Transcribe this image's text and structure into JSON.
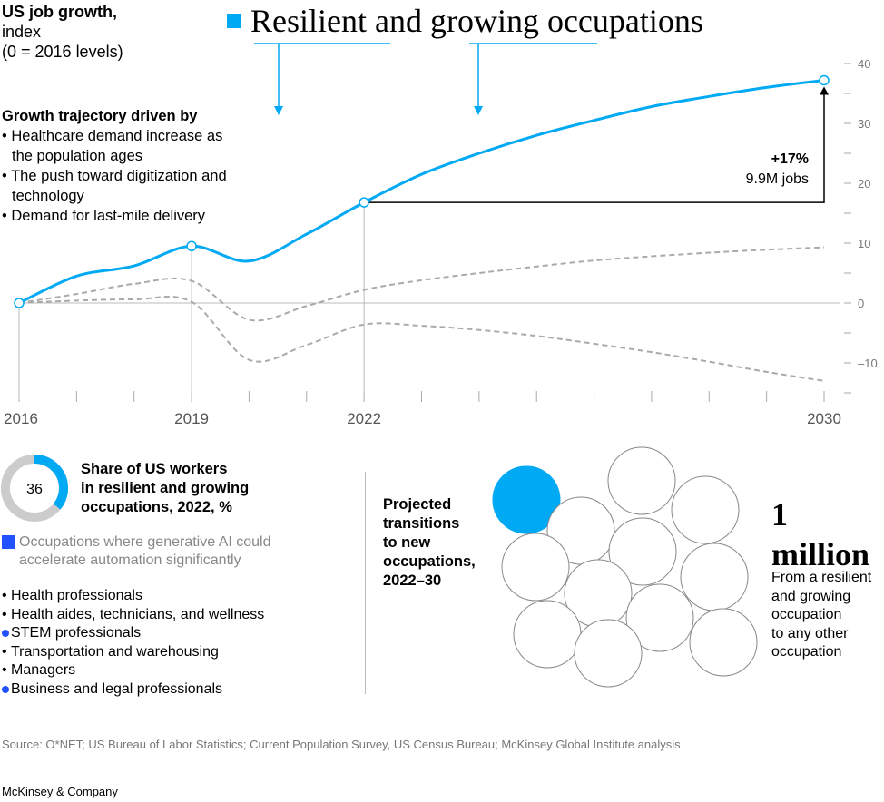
{
  "y_title": {
    "bold": "US job growth,",
    "line2": "index",
    "line3": "(0 = 2016 levels)"
  },
  "headline": "Resilient and growing occupations",
  "drivers": {
    "title": "Growth trajectory driven by",
    "items": [
      "Healthcare demand increase as the population ages",
      "The push toward digitization and technology",
      "Demand for last-mile delivery"
    ]
  },
  "annotation": {
    "pct": "+17%",
    "jobs": "9.9M jobs"
  },
  "colors": {
    "accent": "#00a9f4",
    "ai": "#2251ff",
    "dashed": "#aaaaaa"
  },
  "chart_data": {
    "type": "line",
    "x": [
      2016,
      2017,
      2018,
      2019,
      2020,
      2021,
      2022,
      2023,
      2024,
      2025,
      2026,
      2027,
      2028,
      2029,
      2030
    ],
    "x_tick_labels": [
      "2016",
      "2019",
      "2022",
      "2030"
    ],
    "y_tick_labels": [
      "40",
      "30",
      "20",
      "10",
      "0",
      "–10"
    ],
    "ylim": [
      -15,
      40
    ],
    "series": [
      {
        "name": "Resilient and growing occupations",
        "style": "solid",
        "color": "#00a9f4",
        "values": [
          0,
          4.5,
          6.2,
          9.5,
          7,
          11.5,
          16.8,
          21.5,
          25,
          28,
          30.5,
          32.8,
          34.5,
          36,
          37.2
        ]
      },
      {
        "style": "dashed",
        "color": "#aaaaaa",
        "values": [
          0,
          1.5,
          3.2,
          3.7,
          -2.8,
          -0.5,
          2.2,
          3.8,
          5,
          6.1,
          7.1,
          7.8,
          8.4,
          8.9,
          9.3
        ]
      },
      {
        "style": "dashed",
        "color": "#aaaaaa",
        "values": [
          0,
          0.4,
          0.6,
          0.2,
          -9.5,
          -7,
          -3.6,
          -3.8,
          -4.5,
          -5.5,
          -6.8,
          -8.2,
          -9.8,
          -11.5,
          -13
        ]
      }
    ],
    "markers": [
      2016,
      2019,
      2022,
      2030
    ]
  },
  "share": {
    "value": 36,
    "label": "36",
    "title": [
      "Share of US workers",
      "in resilient and growing",
      "occupations, 2022, %"
    ]
  },
  "legend": "Occupations where generative AI could accelerate automation significantly",
  "occupations": [
    {
      "label": "Health professionals",
      "ai": false
    },
    {
      "label": "Health aides, technicians, and wellness",
      "ai": false
    },
    {
      "label": "STEM professionals",
      "ai": true
    },
    {
      "label": "Transportation and warehousing",
      "ai": false
    },
    {
      "label": "Managers",
      "ai": false
    },
    {
      "label": "Business and legal professionals",
      "ai": true
    }
  ],
  "projected": [
    "Projected",
    "transitions",
    "to new",
    "occupations,",
    "2022–30"
  ],
  "bubbles": {
    "total": 13,
    "highlighted": 1
  },
  "million": {
    "l1": "1",
    "l2": "million",
    "desc": [
      "From a resilient",
      "and growing",
      "occupation",
      "to any other",
      "occupation"
    ]
  },
  "source": "Source: O*NET; US Bureau of Labor Statistics; Current Population Survey, US Census Bureau; McKinsey Global Institute analysis",
  "brand": "McKinsey & Company"
}
